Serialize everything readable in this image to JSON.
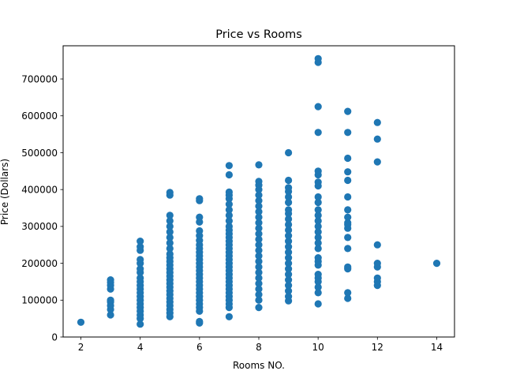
{
  "chart_data": {
    "type": "scatter",
    "title": "Price vs Rooms",
    "xlabel": "Rooms NO.",
    "ylabel": "Price (Dollars)",
    "xlim": [
      1.4,
      14.6
    ],
    "ylim": [
      0,
      790000
    ],
    "xticks": [
      2,
      4,
      6,
      8,
      10,
      12,
      14
    ],
    "yticks": [
      0,
      100000,
      200000,
      300000,
      400000,
      500000,
      600000,
      700000
    ],
    "grid": false,
    "legend": "none",
    "marker_color": "#1f77b4",
    "points": [
      [
        2,
        40000
      ],
      [
        3,
        60000
      ],
      [
        3,
        75000
      ],
      [
        3,
        85000
      ],
      [
        3,
        95000
      ],
      [
        3,
        100000
      ],
      [
        3,
        130000
      ],
      [
        3,
        140000
      ],
      [
        3,
        148000
      ],
      [
        3,
        155000
      ],
      [
        4,
        35000
      ],
      [
        4,
        50000
      ],
      [
        4,
        60000
      ],
      [
        4,
        70000
      ],
      [
        4,
        80000
      ],
      [
        4,
        90000
      ],
      [
        4,
        100000
      ],
      [
        4,
        110000
      ],
      [
        4,
        120000
      ],
      [
        4,
        130000
      ],
      [
        4,
        140000
      ],
      [
        4,
        150000
      ],
      [
        4,
        160000
      ],
      [
        4,
        175000
      ],
      [
        4,
        185000
      ],
      [
        4,
        200000
      ],
      [
        4,
        210000
      ],
      [
        4,
        235000
      ],
      [
        4,
        245000
      ],
      [
        4,
        260000
      ],
      [
        5,
        55000
      ],
      [
        5,
        65000
      ],
      [
        5,
        75000
      ],
      [
        5,
        85000
      ],
      [
        5,
        95000
      ],
      [
        5,
        105000
      ],
      [
        5,
        115000
      ],
      [
        5,
        125000
      ],
      [
        5,
        135000
      ],
      [
        5,
        145000
      ],
      [
        5,
        155000
      ],
      [
        5,
        165000
      ],
      [
        5,
        175000
      ],
      [
        5,
        185000
      ],
      [
        5,
        195000
      ],
      [
        5,
        205000
      ],
      [
        5,
        215000
      ],
      [
        5,
        225000
      ],
      [
        5,
        240000
      ],
      [
        5,
        255000
      ],
      [
        5,
        270000
      ],
      [
        5,
        285000
      ],
      [
        5,
        300000
      ],
      [
        5,
        315000
      ],
      [
        5,
        330000
      ],
      [
        5,
        385000
      ],
      [
        5,
        392000
      ],
      [
        6,
        38000
      ],
      [
        6,
        42000
      ],
      [
        6,
        70000
      ],
      [
        6,
        80000
      ],
      [
        6,
        90000
      ],
      [
        6,
        100000
      ],
      [
        6,
        110000
      ],
      [
        6,
        120000
      ],
      [
        6,
        130000
      ],
      [
        6,
        140000
      ],
      [
        6,
        150000
      ],
      [
        6,
        160000
      ],
      [
        6,
        170000
      ],
      [
        6,
        180000
      ],
      [
        6,
        190000
      ],
      [
        6,
        200000
      ],
      [
        6,
        210000
      ],
      [
        6,
        220000
      ],
      [
        6,
        230000
      ],
      [
        6,
        240000
      ],
      [
        6,
        250000
      ],
      [
        6,
        262000
      ],
      [
        6,
        275000
      ],
      [
        6,
        288000
      ],
      [
        6,
        312000
      ],
      [
        6,
        325000
      ],
      [
        6,
        370000
      ],
      [
        6,
        375000
      ],
      [
        7,
        55000
      ],
      [
        7,
        80000
      ],
      [
        7,
        90000
      ],
      [
        7,
        100000
      ],
      [
        7,
        110000
      ],
      [
        7,
        120000
      ],
      [
        7,
        130000
      ],
      [
        7,
        140000
      ],
      [
        7,
        150000
      ],
      [
        7,
        160000
      ],
      [
        7,
        170000
      ],
      [
        7,
        180000
      ],
      [
        7,
        190000
      ],
      [
        7,
        200000
      ],
      [
        7,
        210000
      ],
      [
        7,
        220000
      ],
      [
        7,
        230000
      ],
      [
        7,
        240000
      ],
      [
        7,
        250000
      ],
      [
        7,
        260000
      ],
      [
        7,
        270000
      ],
      [
        7,
        280000
      ],
      [
        7,
        290000
      ],
      [
        7,
        300000
      ],
      [
        7,
        315000
      ],
      [
        7,
        330000
      ],
      [
        7,
        345000
      ],
      [
        7,
        360000
      ],
      [
        7,
        375000
      ],
      [
        7,
        385000
      ],
      [
        7,
        393000
      ],
      [
        7,
        440000
      ],
      [
        7,
        465000
      ],
      [
        8,
        80000
      ],
      [
        8,
        100000
      ],
      [
        8,
        115000
      ],
      [
        8,
        130000
      ],
      [
        8,
        145000
      ],
      [
        8,
        160000
      ],
      [
        8,
        175000
      ],
      [
        8,
        190000
      ],
      [
        8,
        205000
      ],
      [
        8,
        220000
      ],
      [
        8,
        235000
      ],
      [
        8,
        250000
      ],
      [
        8,
        265000
      ],
      [
        8,
        280000
      ],
      [
        8,
        295000
      ],
      [
        8,
        310000
      ],
      [
        8,
        325000
      ],
      [
        8,
        340000
      ],
      [
        8,
        355000
      ],
      [
        8,
        370000
      ],
      [
        8,
        385000
      ],
      [
        8,
        400000
      ],
      [
        8,
        412000
      ],
      [
        8,
        422000
      ],
      [
        8,
        467000
      ],
      [
        9,
        98000
      ],
      [
        9,
        110000
      ],
      [
        9,
        125000
      ],
      [
        9,
        140000
      ],
      [
        9,
        155000
      ],
      [
        9,
        170000
      ],
      [
        9,
        185000
      ],
      [
        9,
        200000
      ],
      [
        9,
        215000
      ],
      [
        9,
        230000
      ],
      [
        9,
        245000
      ],
      [
        9,
        260000
      ],
      [
        9,
        275000
      ],
      [
        9,
        290000
      ],
      [
        9,
        305000
      ],
      [
        9,
        320000
      ],
      [
        9,
        335000
      ],
      [
        9,
        345000
      ],
      [
        9,
        365000
      ],
      [
        9,
        380000
      ],
      [
        9,
        395000
      ],
      [
        9,
        405000
      ],
      [
        9,
        425000
      ],
      [
        9,
        500000
      ],
      [
        10,
        90000
      ],
      [
        10,
        120000
      ],
      [
        10,
        135000
      ],
      [
        10,
        150000
      ],
      [
        10,
        160000
      ],
      [
        10,
        170000
      ],
      [
        10,
        195000
      ],
      [
        10,
        205000
      ],
      [
        10,
        215000
      ],
      [
        10,
        240000
      ],
      [
        10,
        255000
      ],
      [
        10,
        270000
      ],
      [
        10,
        285000
      ],
      [
        10,
        300000
      ],
      [
        10,
        315000
      ],
      [
        10,
        330000
      ],
      [
        10,
        345000
      ],
      [
        10,
        365000
      ],
      [
        10,
        380000
      ],
      [
        10,
        410000
      ],
      [
        10,
        420000
      ],
      [
        10,
        440000
      ],
      [
        10,
        450000
      ],
      [
        10,
        555000
      ],
      [
        10,
        625000
      ],
      [
        10,
        745000
      ],
      [
        10,
        755000
      ],
      [
        11,
        105000
      ],
      [
        11,
        120000
      ],
      [
        11,
        185000
      ],
      [
        11,
        190000
      ],
      [
        11,
        240000
      ],
      [
        11,
        270000
      ],
      [
        11,
        295000
      ],
      [
        11,
        305000
      ],
      [
        11,
        310000
      ],
      [
        11,
        325000
      ],
      [
        11,
        345000
      ],
      [
        11,
        380000
      ],
      [
        11,
        425000
      ],
      [
        11,
        448000
      ],
      [
        11,
        485000
      ],
      [
        11,
        555000
      ],
      [
        11,
        612000
      ],
      [
        12,
        140000
      ],
      [
        12,
        150000
      ],
      [
        12,
        160000
      ],
      [
        12,
        190000
      ],
      [
        12,
        200000
      ],
      [
        12,
        250000
      ],
      [
        12,
        475000
      ],
      [
        12,
        537000
      ],
      [
        12,
        582000
      ],
      [
        14,
        200000
      ]
    ]
  }
}
